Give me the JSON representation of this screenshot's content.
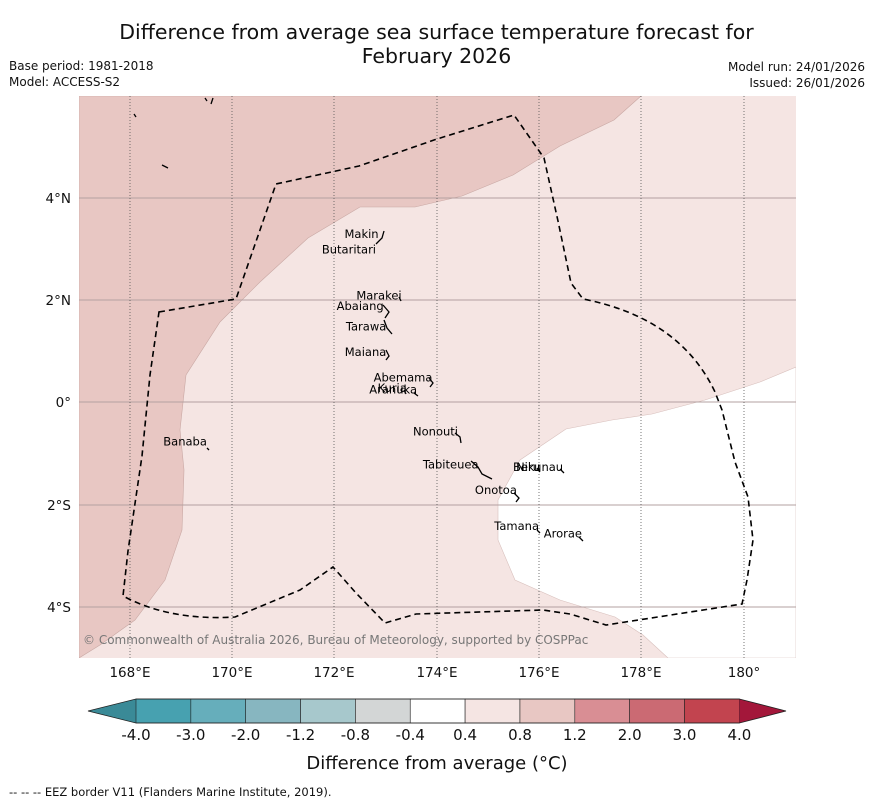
{
  "title_line1": "Difference from average sea surface temperature forecast for",
  "title_line2": "February 2026",
  "meta_left": {
    "base_period": "Base period: 1981-2018",
    "model": "Model: ACCESS-S2"
  },
  "meta_right": {
    "model_run": "Model run: 24/01/2026",
    "issued": "Issued: 26/01/2026"
  },
  "map": {
    "lat_labels": [
      "4°N",
      "2°N",
      "0°",
      "2°S",
      "4°S"
    ],
    "lon_labels": [
      "168°E",
      "170°E",
      "172°E",
      "174°E",
      "176°E",
      "178°E",
      "180°"
    ],
    "copyright": "© Commonwealth of Australia 2026, Bureau of Meteorology, supported by COSPPac",
    "places": [
      {
        "name": "Makin",
        "lon": 172.85,
        "lat": 3.2
      },
      {
        "name": "Butaritari",
        "lon": 172.8,
        "lat": 2.9
      },
      {
        "name": "Marakei",
        "lon": 173.3,
        "lat": 2.0
      },
      {
        "name": "Abaiang",
        "lon": 172.95,
        "lat": 1.8
      },
      {
        "name": "Tarawa",
        "lon": 173.0,
        "lat": 1.4
      },
      {
        "name": "Maiana",
        "lon": 173.0,
        "lat": 0.9
      },
      {
        "name": "Abemama",
        "lon": 173.9,
        "lat": 0.4
      },
      {
        "name": "Kuria",
        "lon": 173.4,
        "lat": 0.2
      },
      {
        "name": "Aranuka",
        "lon": 173.6,
        "lat": 0.17
      },
      {
        "name": "Nonouti",
        "lon": 174.4,
        "lat": -0.65
      },
      {
        "name": "Banaba",
        "lon": 169.5,
        "lat": -0.85
      },
      {
        "name": "Beru",
        "lon": 176.0,
        "lat": -1.35
      },
      {
        "name": "Nikunau",
        "lon": 176.45,
        "lat": -1.35
      },
      {
        "name": "Tabiteuea",
        "lon": 174.8,
        "lat": -1.3
      },
      {
        "name": "Onotoa",
        "lon": 175.55,
        "lat": -1.8
      },
      {
        "name": "Tamana",
        "lon": 175.98,
        "lat": -2.5
      },
      {
        "name": "Arorae",
        "lon": 176.82,
        "lat": -2.65
      }
    ]
  },
  "colorbar": {
    "ticks": [
      "-4.0",
      "-3.0",
      "-2.0",
      "-1.2",
      "-0.8",
      "-0.4",
      "0.4",
      "0.8",
      "1.2",
      "2.0",
      "3.0",
      "4.0"
    ],
    "colors": [
      "#3a8a97",
      "#47a1b0",
      "#66aebb",
      "#87b6c0",
      "#a7c8cc",
      "#d3d6d6",
      "#ffffff",
      "#f5e5e3",
      "#e8c7c3",
      "#d98e94",
      "#cb6a73",
      "#c2444f",
      "#a3173a"
    ],
    "label": "Difference from average (°C)"
  },
  "footer_note": "--  --  -- EEZ border V11 (Flanders Marine Institute, 2019)."
}
